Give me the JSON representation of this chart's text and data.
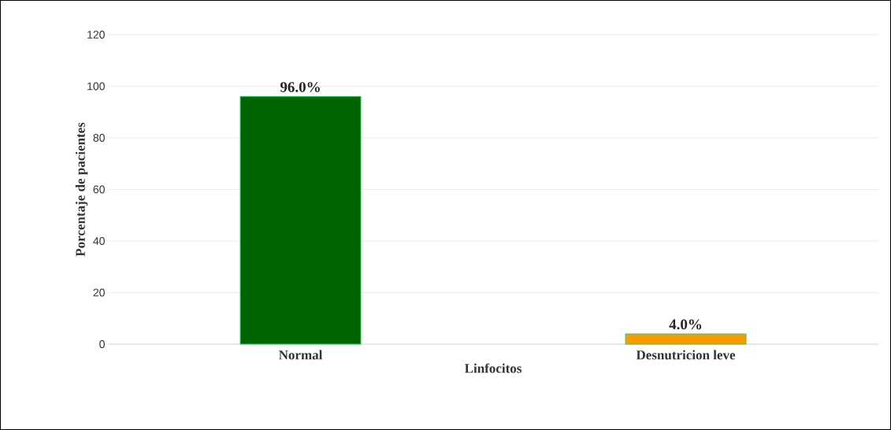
{
  "chart_data": {
    "type": "bar",
    "xlabel": "Linfocitos",
    "ylabel": "Porcentaje de pacientes",
    "categories": [
      "Normal",
      "Desnutricion leve"
    ],
    "values": [
      96,
      4
    ],
    "colors": [
      "#006400",
      "#ff9900"
    ],
    "value_labels": [
      "96.0%",
      "4.0%"
    ],
    "ylim": [
      0,
      120
    ],
    "yticks": [
      0,
      20,
      40,
      60,
      80,
      100,
      120
    ],
    "grid": "y"
  }
}
